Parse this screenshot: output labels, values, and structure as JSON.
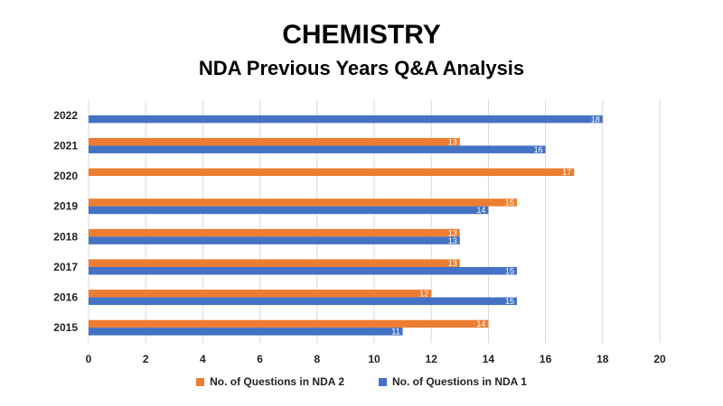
{
  "chart_data": {
    "type": "bar",
    "orientation": "horizontal",
    "title": "CHEMISTRY",
    "subtitle": "NDA Previous Years Q&A Analysis",
    "xlabel": "",
    "ylabel": "",
    "xlim": [
      0,
      20
    ],
    "xticks": [
      0,
      2,
      4,
      6,
      8,
      10,
      12,
      14,
      16,
      18,
      20
    ],
    "grid": true,
    "legend_position": "bottom",
    "categories": [
      "2015",
      "2016",
      "2017",
      "2018",
      "2019",
      "2020",
      "2021",
      "2022"
    ],
    "series": [
      {
        "name": "No. of Questions in NDA 2",
        "color": "#ED7D31",
        "values": [
          14,
          12,
          13,
          13,
          15,
          17,
          13,
          null
        ]
      },
      {
        "name": "No. of Questions in NDA 1",
        "color": "#4472C4",
        "values": [
          11,
          15,
          15,
          13,
          14,
          null,
          16,
          18
        ]
      }
    ]
  }
}
